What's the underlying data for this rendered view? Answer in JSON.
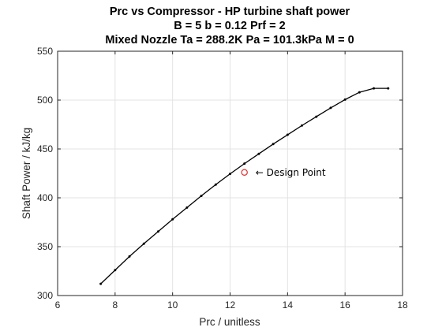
{
  "chart_data": {
    "type": "line",
    "title_lines": [
      "Prc vs Compressor - HP turbine shaft power",
      "B = 5 b = 0.12 Prf = 2",
      "Mixed Nozzle Ta = 288.2K Pa = 101.3kPa M = 0"
    ],
    "xlabel": "Prc / unitless",
    "ylabel": "Shaft Power / kJ/kg",
    "xlim": [
      6,
      18
    ],
    "ylim": [
      300,
      550
    ],
    "xticks": [
      6,
      8,
      10,
      12,
      14,
      16,
      18
    ],
    "yticks": [
      300,
      350,
      400,
      450,
      500,
      550
    ],
    "grid": true,
    "series": [
      {
        "color": "#000000",
        "marker": "dot",
        "x": [
          7.5,
          8,
          8.5,
          9,
          9.5,
          10,
          10.5,
          11,
          11.5,
          12,
          12.5,
          13,
          13.5,
          14,
          14.5,
          15,
          15.5,
          16,
          16.5,
          17,
          17.5
        ],
        "y": [
          312,
          326,
          340,
          353,
          365.5,
          378,
          390,
          402,
          413.5,
          424.5,
          435,
          445,
          455,
          464.5,
          474,
          483,
          492,
          500.5,
          508,
          512,
          512
        ]
      }
    ],
    "design_point": {
      "x": 12.5,
      "y": 426,
      "color": "#e03030",
      "label": "← Design Point"
    }
  }
}
